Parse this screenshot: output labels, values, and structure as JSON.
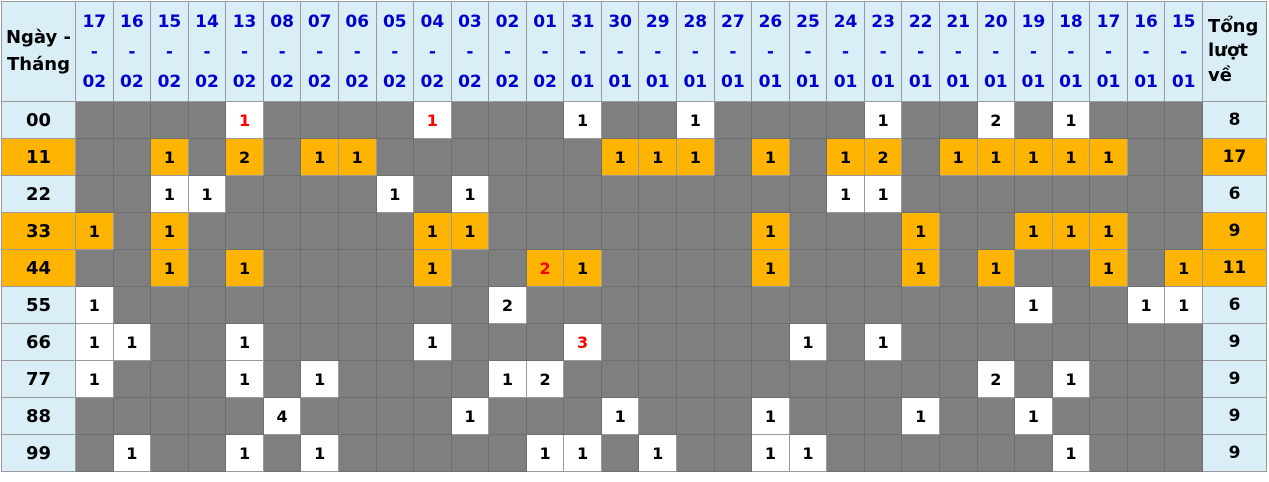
{
  "colors": {
    "header_bg": "#d9eef7",
    "header_date_text": "#0000cc",
    "highlight_bg": "#ffb401",
    "empty_cell_bg": "#7f7f7f",
    "filled_cell_bg": "#ffffff",
    "value_text": "#000000",
    "special_value_text": "#ff0000",
    "grid_border": "#9a9a9a"
  },
  "chart_data": {
    "type": "table",
    "corner_label": "Ngày - Tháng",
    "total_label": "Tổng lượt về",
    "date_separator": "-",
    "columns": [
      {
        "d": "17",
        "m": "02"
      },
      {
        "d": "16",
        "m": "02"
      },
      {
        "d": "15",
        "m": "02"
      },
      {
        "d": "14",
        "m": "02"
      },
      {
        "d": "13",
        "m": "02"
      },
      {
        "d": "08",
        "m": "02"
      },
      {
        "d": "07",
        "m": "02"
      },
      {
        "d": "06",
        "m": "02"
      },
      {
        "d": "05",
        "m": "02"
      },
      {
        "d": "04",
        "m": "02"
      },
      {
        "d": "03",
        "m": "02"
      },
      {
        "d": "02",
        "m": "02"
      },
      {
        "d": "01",
        "m": "02"
      },
      {
        "d": "31",
        "m": "01"
      },
      {
        "d": "30",
        "m": "01"
      },
      {
        "d": "29",
        "m": "01"
      },
      {
        "d": "28",
        "m": "01"
      },
      {
        "d": "27",
        "m": "01"
      },
      {
        "d": "26",
        "m": "01"
      },
      {
        "d": "25",
        "m": "01"
      },
      {
        "d": "24",
        "m": "01"
      },
      {
        "d": "23",
        "m": "01"
      },
      {
        "d": "22",
        "m": "01"
      },
      {
        "d": "21",
        "m": "01"
      },
      {
        "d": "20",
        "m": "01"
      },
      {
        "d": "19",
        "m": "01"
      },
      {
        "d": "18",
        "m": "01"
      },
      {
        "d": "17",
        "m": "01"
      },
      {
        "d": "16",
        "m": "01"
      },
      {
        "d": "15",
        "m": "01"
      }
    ],
    "rows": [
      {
        "label": "00",
        "highlight": false,
        "total": "8",
        "cells": {
          "13-02": "1",
          "04-02": "1",
          "31-01": "1",
          "28-01": "1",
          "23-01": "1",
          "20-01": "2",
          "18-01": "1"
        },
        "red": [
          "13-02",
          "04-02"
        ]
      },
      {
        "label": "11",
        "highlight": true,
        "total": "17",
        "cells": {
          "15-02": "1",
          "13-02": "2",
          "07-02": "1",
          "06-02": "1",
          "30-01": "1",
          "29-01": "1",
          "28-01": "1",
          "26-01": "1",
          "24-01": "1",
          "23-01": "2",
          "21-01": "1",
          "20-01": "1",
          "19-01": "1",
          "18-01": "1",
          "17-01": "1"
        },
        "red": []
      },
      {
        "label": "22",
        "highlight": false,
        "total": "6",
        "cells": {
          "15-02": "1",
          "14-02": "1",
          "05-02": "1",
          "03-02": "1",
          "24-01": "1",
          "23-01": "1"
        },
        "red": []
      },
      {
        "label": "33",
        "highlight": true,
        "total": "9",
        "cells": {
          "17-02": "1",
          "15-02": "1",
          "04-02": "1",
          "03-02": "1",
          "26-01": "1",
          "22-01": "1",
          "19-01": "1",
          "18-01": "1",
          "17-01": "1"
        },
        "red": []
      },
      {
        "label": "44",
        "highlight": true,
        "total": "11",
        "cells": {
          "15-02": "1",
          "13-02": "1",
          "04-02": "1",
          "01-02": "2",
          "31-01": "1",
          "26-01": "1",
          "22-01": "1",
          "20-01": "1",
          "17-01": "1",
          "15-01": "1"
        },
        "red": [
          "01-02"
        ]
      },
      {
        "label": "55",
        "highlight": false,
        "total": "6",
        "cells": {
          "17-02": "1",
          "02-02": "2",
          "19-01": "1",
          "16-01": "1",
          "15-01": "1"
        },
        "red": []
      },
      {
        "label": "66",
        "highlight": false,
        "total": "9",
        "cells": {
          "17-02": "1",
          "16-02": "1",
          "13-02": "1",
          "04-02": "1",
          "31-01": "3",
          "25-01": "1",
          "23-01": "1"
        },
        "red": [
          "31-01"
        ]
      },
      {
        "label": "77",
        "highlight": false,
        "total": "9",
        "cells": {
          "17-02": "1",
          "13-02": "1",
          "07-02": "1",
          "02-02": "1",
          "01-02": "2",
          "20-01": "2",
          "18-01": "1"
        },
        "red": []
      },
      {
        "label": "88",
        "highlight": false,
        "total": "9",
        "cells": {
          "08-02": "4",
          "03-02": "1",
          "30-01": "1",
          "26-01": "1",
          "22-01": "1",
          "19-01": "1"
        },
        "red": []
      },
      {
        "label": "99",
        "highlight": false,
        "total": "9",
        "cells": {
          "16-02": "1",
          "13-02": "1",
          "07-02": "1",
          "01-02": "1",
          "31-01": "1",
          "29-01": "1",
          "26-01": "1",
          "25-01": "1",
          "18-01": "1"
        },
        "red": []
      }
    ]
  }
}
